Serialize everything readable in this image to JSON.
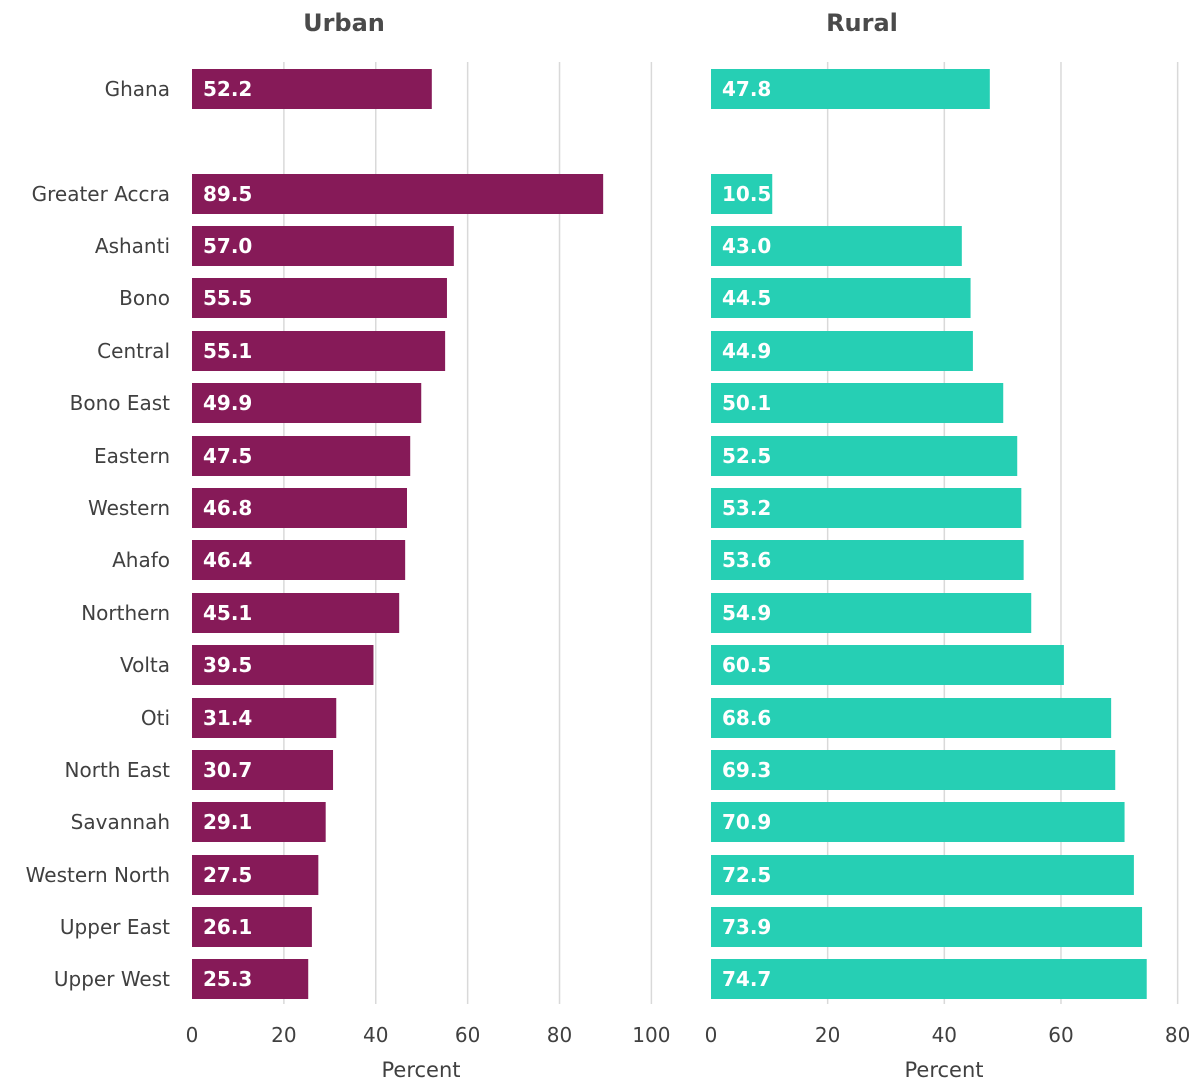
{
  "chart_data": [
    {
      "type": "bar",
      "orientation": "horizontal",
      "title": "Urban",
      "xlabel": "Percent",
      "xlim": [
        0,
        100
      ],
      "xticks": [
        "0",
        "20",
        "40",
        "60",
        "80",
        "100"
      ],
      "grid": true,
      "color": "#861a58",
      "categories": [
        "Ghana",
        "Greater Accra",
        "Ashanti",
        "Bono",
        "Central",
        "Bono East",
        "Eastern",
        "Western",
        "Ahafo",
        "Northern",
        "Volta",
        "Oti",
        "North East",
        "Savannah",
        "Western North",
        "Upper East",
        "Upper West"
      ],
      "values": [
        52.2,
        89.5,
        57.0,
        55.5,
        55.1,
        49.9,
        47.5,
        46.8,
        46.4,
        45.1,
        39.5,
        31.4,
        30.7,
        29.1,
        27.5,
        26.1,
        25.3
      ],
      "value_labels": [
        "52.2",
        "89.5",
        "57.0",
        "55.5",
        "55.1",
        "49.9",
        "47.5",
        "46.8",
        "46.4",
        "45.1",
        "39.5",
        "31.4",
        "30.7",
        "29.1",
        "27.5",
        "26.1",
        "25.3"
      ]
    },
    {
      "type": "bar",
      "orientation": "horizontal",
      "title": "Rural",
      "xlabel": "Percent",
      "xlim": [
        0,
        80
      ],
      "xticks": [
        "0",
        "20",
        "40",
        "60",
        "80"
      ],
      "grid": true,
      "color": "#26cfb4",
      "categories": [
        "Ghana",
        "Greater Accra",
        "Ashanti",
        "Bono",
        "Central",
        "Bono East",
        "Eastern",
        "Western",
        "Ahafo",
        "Northern",
        "Volta",
        "Oti",
        "North East",
        "Savannah",
        "Western North",
        "Upper East",
        "Upper West"
      ],
      "values": [
        47.8,
        10.5,
        43.0,
        44.5,
        44.9,
        50.1,
        52.5,
        53.2,
        53.6,
        54.9,
        60.5,
        68.6,
        69.3,
        70.9,
        72.5,
        73.9,
        74.7
      ],
      "value_labels": [
        "47.8",
        "10.5",
        "43.0",
        "44.5",
        "44.9",
        "50.1",
        "52.5",
        "53.2",
        "53.6",
        "54.9",
        "60.5",
        "68.6",
        "69.3",
        "70.9",
        "72.5",
        "73.9",
        "74.7"
      ]
    }
  ]
}
